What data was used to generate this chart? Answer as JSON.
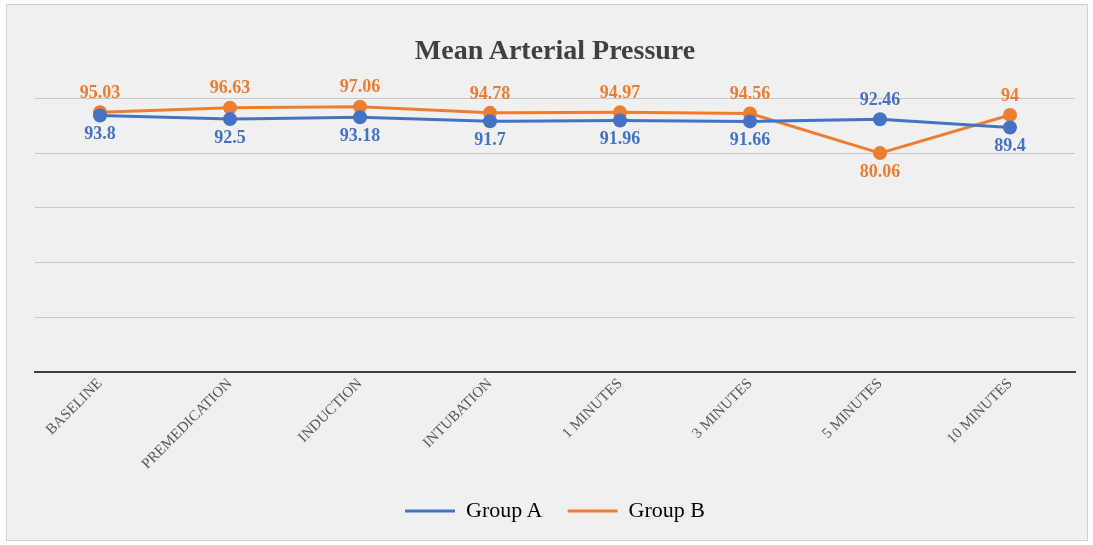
{
  "chart_data": {
    "type": "line",
    "title": "Mean Arterial Pressure",
    "categories": [
      "BASELINE",
      "PREMEDICATION",
      "INDUCTION",
      "INTUBATION",
      "1 MINUTES",
      "3 MINUTES",
      "5 MINUTES",
      "10 MINUTES"
    ],
    "series": [
      {
        "name": "Group A",
        "color": "#4472c4",
        "values": [
          93.8,
          92.5,
          93.18,
          91.7,
          91.96,
          91.66,
          92.46,
          89.4
        ]
      },
      {
        "name": "Group B",
        "color": "#ed7d31",
        "values": [
          95.03,
          96.63,
          97.06,
          94.78,
          94.97,
          94.56,
          80.06,
          94
        ]
      }
    ],
    "ylim": [
      0,
      100
    ],
    "yticks": [
      {
        "value": 0,
        "label": null
      },
      {
        "value": 20,
        "label": null
      },
      {
        "value": 40,
        "label": null
      },
      {
        "value": 60,
        "label": null
      },
      {
        "value": 80,
        "label": null
      },
      {
        "value": 100,
        "label": null
      }
    ],
    "tick_labels": "x",
    "grid": "y",
    "legend": "bottom",
    "marker": "circle",
    "line_style": "solid",
    "data_labels": true
  }
}
